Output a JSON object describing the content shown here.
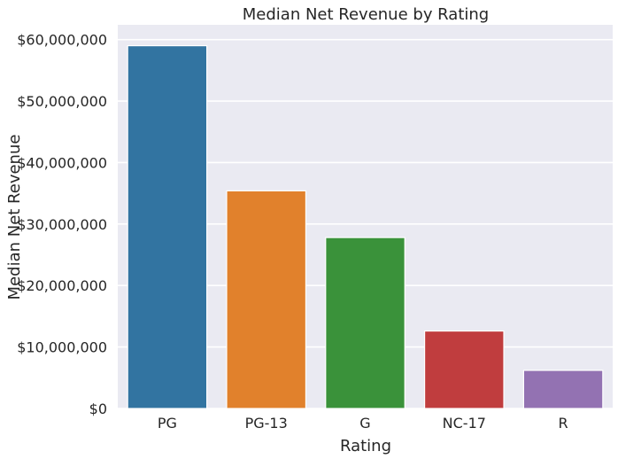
{
  "chart_data": {
    "type": "bar",
    "title": "Median Net Revenue by Rating",
    "xlabel": "Rating",
    "ylabel": "Median Net Revenue",
    "categories": [
      "PG",
      "PG-13",
      "G",
      "NC-17",
      "R"
    ],
    "values": [
      59000000,
      35400000,
      27800000,
      12600000,
      6200000
    ],
    "colors": [
      "#3274a1",
      "#e1812c",
      "#3a923a",
      "#c03d3e",
      "#9372b2"
    ],
    "ylim": [
      0,
      62400000
    ],
    "yticks": [
      0,
      10000000,
      20000000,
      30000000,
      40000000,
      50000000,
      60000000
    ],
    "ytick_labels": [
      "$0",
      "$10,000,000",
      "$20,000,000",
      "$30,000,000",
      "$40,000,000",
      "$50,000,000",
      "$60,000,000"
    ],
    "grid": true,
    "background": "#eaeaf2"
  }
}
